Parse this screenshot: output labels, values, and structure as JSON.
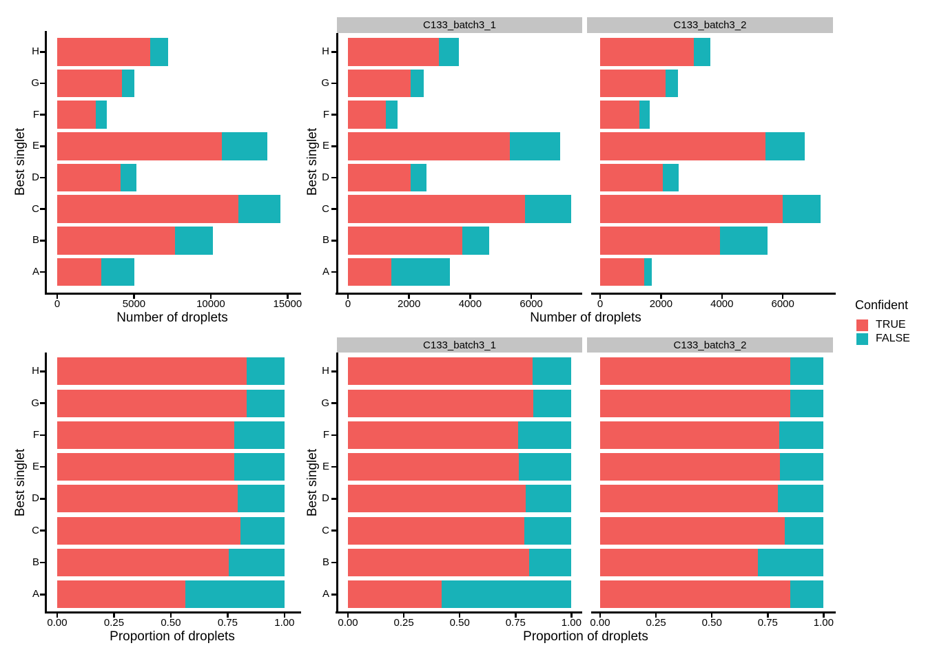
{
  "figure": {
    "background": "#FFFFFF"
  },
  "colors": {
    "TRUE": "#F25D5A",
    "FALSE": "#18B2B8",
    "strip": "#C4C4C4",
    "axis": "#000000"
  },
  "legend": {
    "title": "Confident",
    "entries": [
      {
        "label": "TRUE",
        "color": "#F25D5A"
      },
      {
        "label": "FALSE",
        "color": "#18B2B8"
      }
    ]
  },
  "chart_data": [
    {
      "type": "bar",
      "orientation": "horizontal",
      "stacked": true,
      "xlabel": "Number of droplets",
      "ylabel": "Best singlet",
      "legend_title": "Confident",
      "legend_position": "right",
      "grid": false,
      "categories_top_to_bottom": [
        "H",
        "G",
        "F",
        "E",
        "D",
        "C",
        "B",
        "A"
      ],
      "panels": [
        {
          "facet": null,
          "xlim": [
            0,
            15700
          ],
          "xticks": [
            0,
            5000,
            10000,
            15000
          ],
          "xtick_labels": [
            "0",
            "5000",
            "10000",
            "15000"
          ],
          "series": [
            {
              "name": "TRUE",
              "values": [
                6060,
                4220,
                2520,
                10720,
                4120,
                11800,
                7680,
                2880
              ]
            },
            {
              "name": "FALSE",
              "values": [
                1180,
                820,
                720,
                2960,
                1040,
                2750,
                2450,
                2150
              ]
            }
          ]
        },
        {
          "facet": "C133_batch3_1",
          "xlim": [
            0,
            7670
          ],
          "xticks": [
            0,
            2000,
            4000,
            6000
          ],
          "xtick_labels": [
            "0",
            "2000",
            "4000",
            "6000"
          ],
          "series": [
            {
              "name": "TRUE",
              "values": [
                2980,
                2060,
                1230,
                5300,
                2050,
                5800,
                3750,
                1430
              ]
            },
            {
              "name": "FALSE",
              "values": [
                640,
                430,
                390,
                1650,
                520,
                1500,
                880,
                1900
              ]
            }
          ]
        },
        {
          "facet": "C133_batch3_2",
          "xlim": [
            0,
            7650
          ],
          "xticks": [
            0,
            2000,
            4000,
            6000
          ],
          "xtick_labels": [
            "0",
            "2000",
            "4000",
            "6000"
          ],
          "series": [
            {
              "name": "TRUE",
              "values": [
                3080,
                2160,
                1290,
                5420,
                2070,
                6000,
                3930,
                1450
              ]
            },
            {
              "name": "FALSE",
              "values": [
                540,
                390,
                330,
                1310,
                520,
                1250,
                1570,
                250
              ]
            }
          ]
        }
      ]
    },
    {
      "type": "bar",
      "orientation": "horizontal",
      "stacked": true,
      "xlabel": "Proportion of droplets",
      "ylabel": "Best singlet",
      "legend_title": "Confident",
      "legend_position": "right",
      "grid": false,
      "categories_top_to_bottom": [
        "H",
        "G",
        "F",
        "E",
        "D",
        "C",
        "B",
        "A"
      ],
      "panels": [
        {
          "facet": null,
          "xlim": [
            0,
            1.06
          ],
          "xticks": [
            0,
            0.25,
            0.5,
            0.75,
            1
          ],
          "xtick_labels": [
            "0.00",
            "0.25",
            "0.50",
            "0.75",
            "1.00"
          ],
          "series": [
            {
              "name": "TRUE",
              "values": [
                0.835,
                0.835,
                0.78,
                0.78,
                0.795,
                0.805,
                0.755,
                0.565
              ]
            },
            {
              "name": "FALSE",
              "values": [
                0.165,
                0.165,
                0.22,
                0.22,
                0.205,
                0.195,
                0.245,
                0.435
              ]
            }
          ]
        },
        {
          "facet": "C133_batch3_1",
          "xlim": [
            0,
            1.06
          ],
          "xticks": [
            0,
            0.25,
            0.5,
            0.75,
            1
          ],
          "xtick_labels": [
            "0.00",
            "0.25",
            "0.50",
            "0.75",
            "1.00"
          ],
          "series": [
            {
              "name": "TRUE",
              "values": [
                0.825,
                0.83,
                0.76,
                0.765,
                0.795,
                0.79,
                0.81,
                0.42
              ]
            },
            {
              "name": "FALSE",
              "values": [
                0.175,
                0.17,
                0.24,
                0.235,
                0.205,
                0.21,
                0.19,
                0.58
              ]
            }
          ]
        },
        {
          "facet": "C133_batch3_2",
          "xlim": [
            0,
            1.06
          ],
          "xticks": [
            0,
            0.25,
            0.5,
            0.75,
            1
          ],
          "xtick_labels": [
            "0.00",
            "0.25",
            "0.50",
            "0.75",
            "1.00"
          ],
          "series": [
            {
              "name": "TRUE",
              "values": [
                0.85,
                0.85,
                0.8,
                0.805,
                0.795,
                0.825,
                0.705,
                0.85
              ]
            },
            {
              "name": "FALSE",
              "values": [
                0.15,
                0.15,
                0.2,
                0.195,
                0.205,
                0.175,
                0.295,
                0.15
              ]
            }
          ]
        }
      ]
    }
  ]
}
